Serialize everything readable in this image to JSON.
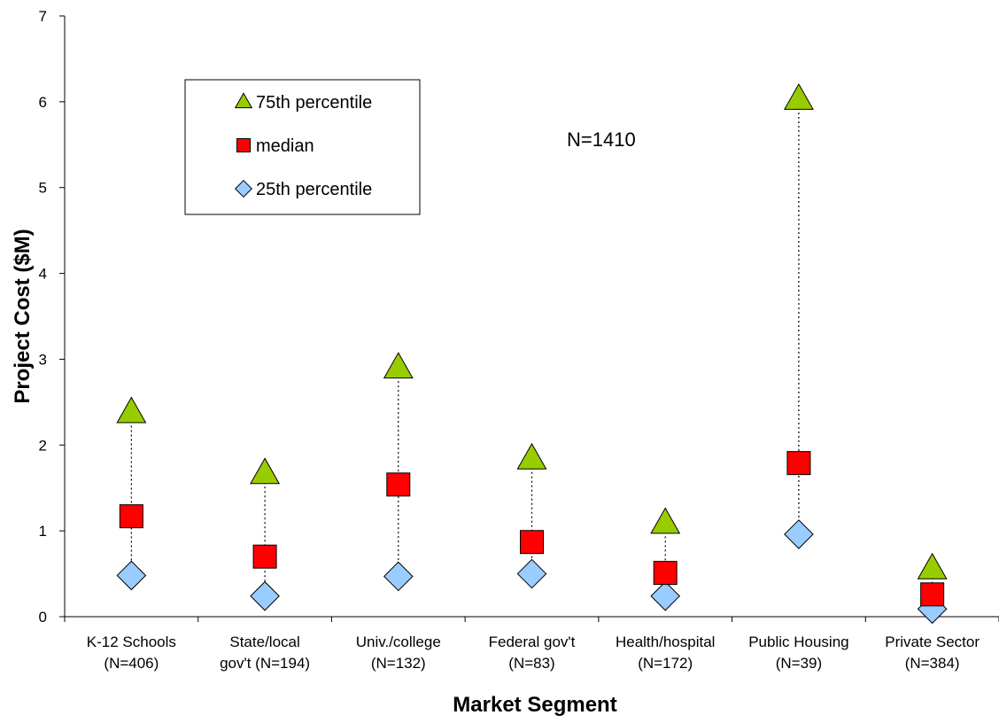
{
  "chart_data": {
    "type": "scatter",
    "title": "",
    "xlabel": "Market Segment",
    "ylabel": "Project Cost ($M)",
    "ylim": [
      0,
      7
    ],
    "yticks": [
      0,
      1,
      2,
      3,
      4,
      5,
      6,
      7
    ],
    "categories": [
      [
        "K-12 Schools",
        "(N=406)"
      ],
      [
        "State/local",
        "gov't (N=194)"
      ],
      [
        "Univ./college",
        "(N=132)"
      ],
      [
        "Federal gov't",
        "(N=83)"
      ],
      [
        "Health/hospital",
        "(N=172)"
      ],
      [
        "Public Housing",
        "(N=39)"
      ],
      [
        "Private Sector",
        "(N=384)"
      ]
    ],
    "series": [
      {
        "name": "75th percentile",
        "marker": "triangle",
        "color": "#99CC00",
        "values": [
          2.38,
          1.67,
          2.9,
          1.84,
          1.09,
          6.03,
          0.56
        ]
      },
      {
        "name": "median",
        "marker": "square",
        "color": "#FF0000",
        "values": [
          1.17,
          0.7,
          1.54,
          0.87,
          0.51,
          1.79,
          0.26
        ]
      },
      {
        "name": "25th percentile",
        "marker": "diamond",
        "color": "#99CCFF",
        "values": [
          0.48,
          0.24,
          0.47,
          0.5,
          0.24,
          0.96,
          0.09
        ]
      }
    ],
    "annotations": [
      "N=1410"
    ],
    "legend_position": "top-left",
    "grid": false
  }
}
